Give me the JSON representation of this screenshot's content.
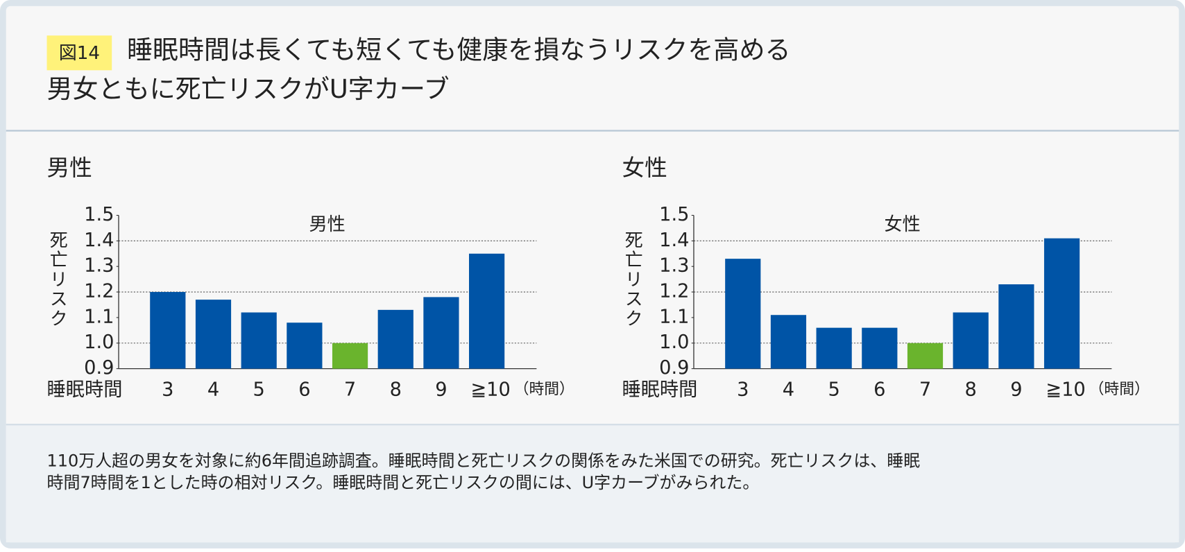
{
  "header": {
    "badge": "図14",
    "title_lines": [
      "睡眠時間は長くても短くても健康を損なうリスクを高める",
      "男女ともに死亡リスクがU字カーブ"
    ]
  },
  "chart_data": [
    {
      "type": "bar",
      "heading": "男性",
      "title": "男性",
      "y_label": "死亡リスク",
      "x_label": "睡眠時間",
      "x_unit": "（時間）",
      "categories": [
        "3",
        "4",
        "5",
        "6",
        "7",
        "8",
        "9",
        "≧10"
      ],
      "values": [
        1.2,
        1.17,
        1.12,
        1.08,
        1.0,
        1.13,
        1.18,
        1.35
      ],
      "colors": [
        "#0054a6",
        "#0054a6",
        "#0054a6",
        "#0054a6",
        "#6ab42d",
        "#0054a6",
        "#0054a6",
        "#0054a6"
      ],
      "ylim": [
        0.9,
        1.5
      ],
      "yticks": [
        0.9,
        {
          "value": 1,
          "label": "1.0"
        },
        1.1,
        1.2,
        1.3,
        1.4,
        1.5
      ],
      "gridlines": [
        1,
        1.2,
        1.4
      ]
    },
    {
      "type": "bar",
      "heading": "女性",
      "title": "女性",
      "y_label": "死亡リスク",
      "x_label": "睡眠時間",
      "x_unit": "（時間）",
      "categories": [
        "3",
        "4",
        "5",
        "6",
        "7",
        "8",
        "9",
        "≧10"
      ],
      "values": [
        1.33,
        1.11,
        1.06,
        1.06,
        1.0,
        1.12,
        1.23,
        1.41
      ],
      "colors": [
        "#0054a6",
        "#0054a6",
        "#0054a6",
        "#0054a6",
        "#6ab42d",
        "#0054a6",
        "#0054a6",
        "#0054a6"
      ],
      "ylim": [
        0.9,
        1.5
      ],
      "yticks": [
        0.9,
        {
          "value": 1,
          "label": "1.0"
        },
        1.1,
        1.2,
        1.3,
        1.4,
        1.5
      ],
      "gridlines": [
        1,
        1.2,
        1.4
      ]
    }
  ],
  "note": {
    "lines": [
      "110万人超の男女を対象に約6年間追跡調査。睡眠時間と死亡リスクの関係をみた米国での研究。死亡リスクは、睡眠",
      "時間7時間を1とした時の相対リスク。睡眠時間と死亡リスクの間には、U字カーブがみられた。"
    ]
  }
}
